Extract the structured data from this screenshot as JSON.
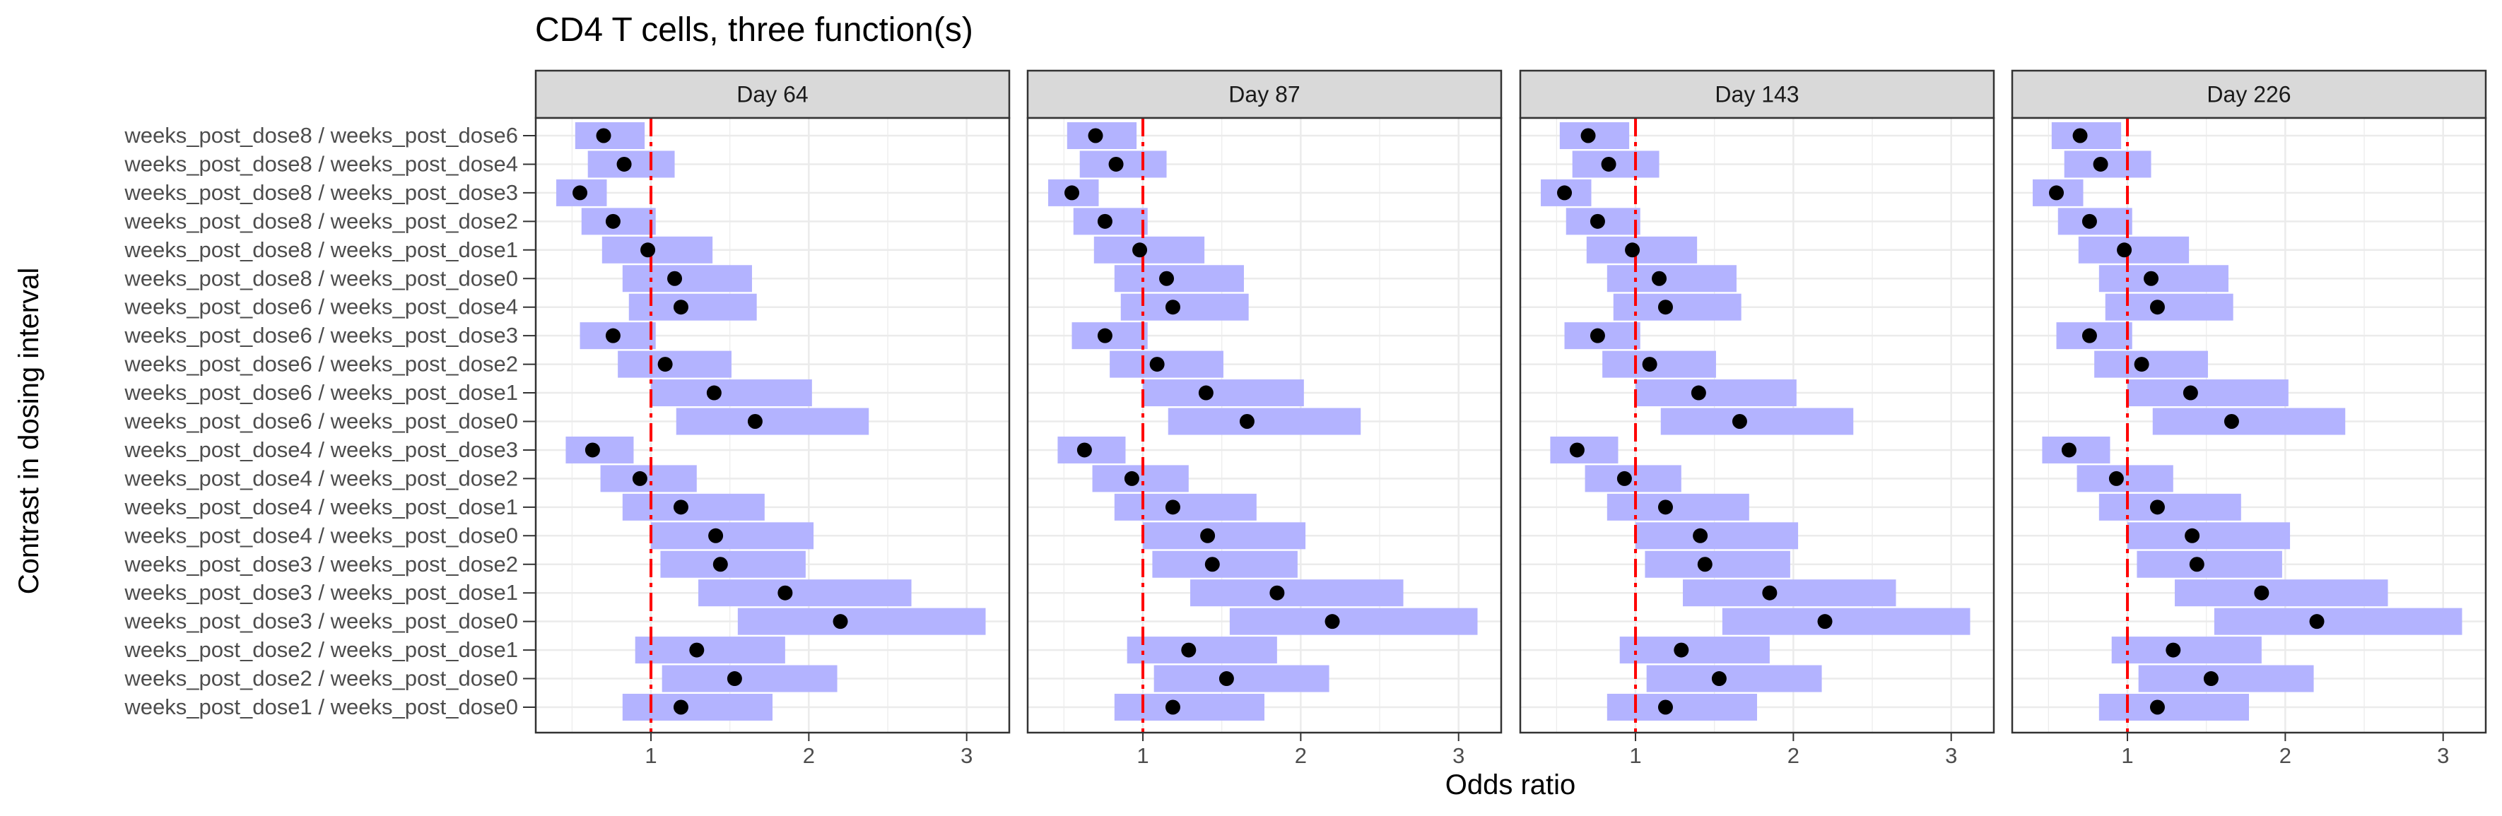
{
  "chart_data": {
    "type": "forest",
    "title": "CD4 T cells, three function(s)",
    "xlabel": "Odds ratio",
    "ylabel": "Contrast in dosing interval",
    "xlim": [
      0.27,
      3.27
    ],
    "xticks": [
      1,
      2,
      3
    ],
    "reference_line": 1,
    "grid": true,
    "colors": {
      "interval": "#b3b3ff",
      "point": "#000000",
      "reference": "#ff0000",
      "strip": "#d9d9d9",
      "grid": "#ebebeb",
      "border": "#333333",
      "text": "#1a1a1a",
      "tick_text": "#4d4d4d"
    },
    "panels": [
      "Day 64",
      "Day 87",
      "Day 143",
      "Day 226"
    ],
    "categories": [
      "weeks_post_dose8 / weeks_post_dose6",
      "weeks_post_dose8 / weeks_post_dose4",
      "weeks_post_dose8 / weeks_post_dose3",
      "weeks_post_dose8 / weeks_post_dose2",
      "weeks_post_dose8 / weeks_post_dose1",
      "weeks_post_dose8 / weeks_post_dose0",
      "weeks_post_dose6 / weeks_post_dose4",
      "weeks_post_dose6 / weeks_post_dose3",
      "weeks_post_dose6 / weeks_post_dose2",
      "weeks_post_dose6 / weeks_post_dose1",
      "weeks_post_dose6 / weeks_post_dose0",
      "weeks_post_dose4 / weeks_post_dose3",
      "weeks_post_dose4 / weeks_post_dose2",
      "weeks_post_dose4 / weeks_post_dose1",
      "weeks_post_dose4 / weeks_post_dose0",
      "weeks_post_dose3 / weeks_post_dose2",
      "weeks_post_dose3 / weeks_post_dose1",
      "weeks_post_dose3 / weeks_post_dose0",
      "weeks_post_dose2 / weeks_post_dose1",
      "weeks_post_dose2 / weeks_post_dose0",
      "weeks_post_dose1 / weeks_post_dose0"
    ],
    "estimates": [
      0.7,
      0.83,
      0.55,
      0.76,
      0.98,
      1.15,
      1.19,
      0.76,
      1.09,
      1.4,
      1.66,
      0.63,
      0.93,
      1.19,
      1.41,
      1.44,
      1.85,
      2.2,
      1.29,
      1.53,
      1.19
    ],
    "lower": [
      0.52,
      0.6,
      0.4,
      0.56,
      0.69,
      0.82,
      0.86,
      0.55,
      0.79,
      1.0,
      1.16,
      0.46,
      0.68,
      0.82,
      1.0,
      1.06,
      1.3,
      1.55,
      0.9,
      1.07,
      0.82
    ],
    "upper": [
      0.96,
      1.15,
      0.72,
      1.03,
      1.39,
      1.64,
      1.67,
      1.03,
      1.51,
      2.02,
      2.38,
      0.89,
      1.29,
      1.72,
      2.03,
      1.98,
      2.65,
      3.12,
      1.85,
      2.18,
      1.77
    ]
  }
}
